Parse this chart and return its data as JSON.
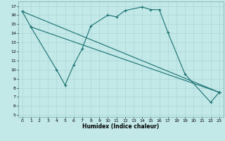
{
  "xlabel": "Humidex (Indice chaleur)",
  "bg_color": "#c2e8e8",
  "line_color": "#1a7070",
  "grid_color": "#a8d4d4",
  "main_x": [
    0,
    1,
    4,
    5,
    6,
    7,
    8,
    10,
    11,
    12,
    14,
    15,
    16,
    17,
    19,
    22,
    23
  ],
  "main_y": [
    16.4,
    14.7,
    10.0,
    8.3,
    10.5,
    12.3,
    14.8,
    16.0,
    15.8,
    16.5,
    16.9,
    16.6,
    16.6,
    14.1,
    9.5,
    6.4,
    7.5
  ],
  "line2_x": [
    1,
    23
  ],
  "line2_y": [
    14.7,
    7.5
  ],
  "line3_x": [
    0,
    23
  ],
  "line3_y": [
    16.4,
    7.5
  ],
  "xlim": [
    -0.5,
    23.5
  ],
  "ylim": [
    4.8,
    17.5
  ],
  "yticks": [
    5,
    6,
    7,
    8,
    9,
    10,
    11,
    12,
    13,
    14,
    15,
    16,
    17
  ],
  "xticks": [
    0,
    1,
    2,
    3,
    4,
    5,
    6,
    7,
    8,
    9,
    10,
    11,
    12,
    13,
    14,
    15,
    16,
    17,
    18,
    19,
    20,
    21,
    22,
    23
  ]
}
